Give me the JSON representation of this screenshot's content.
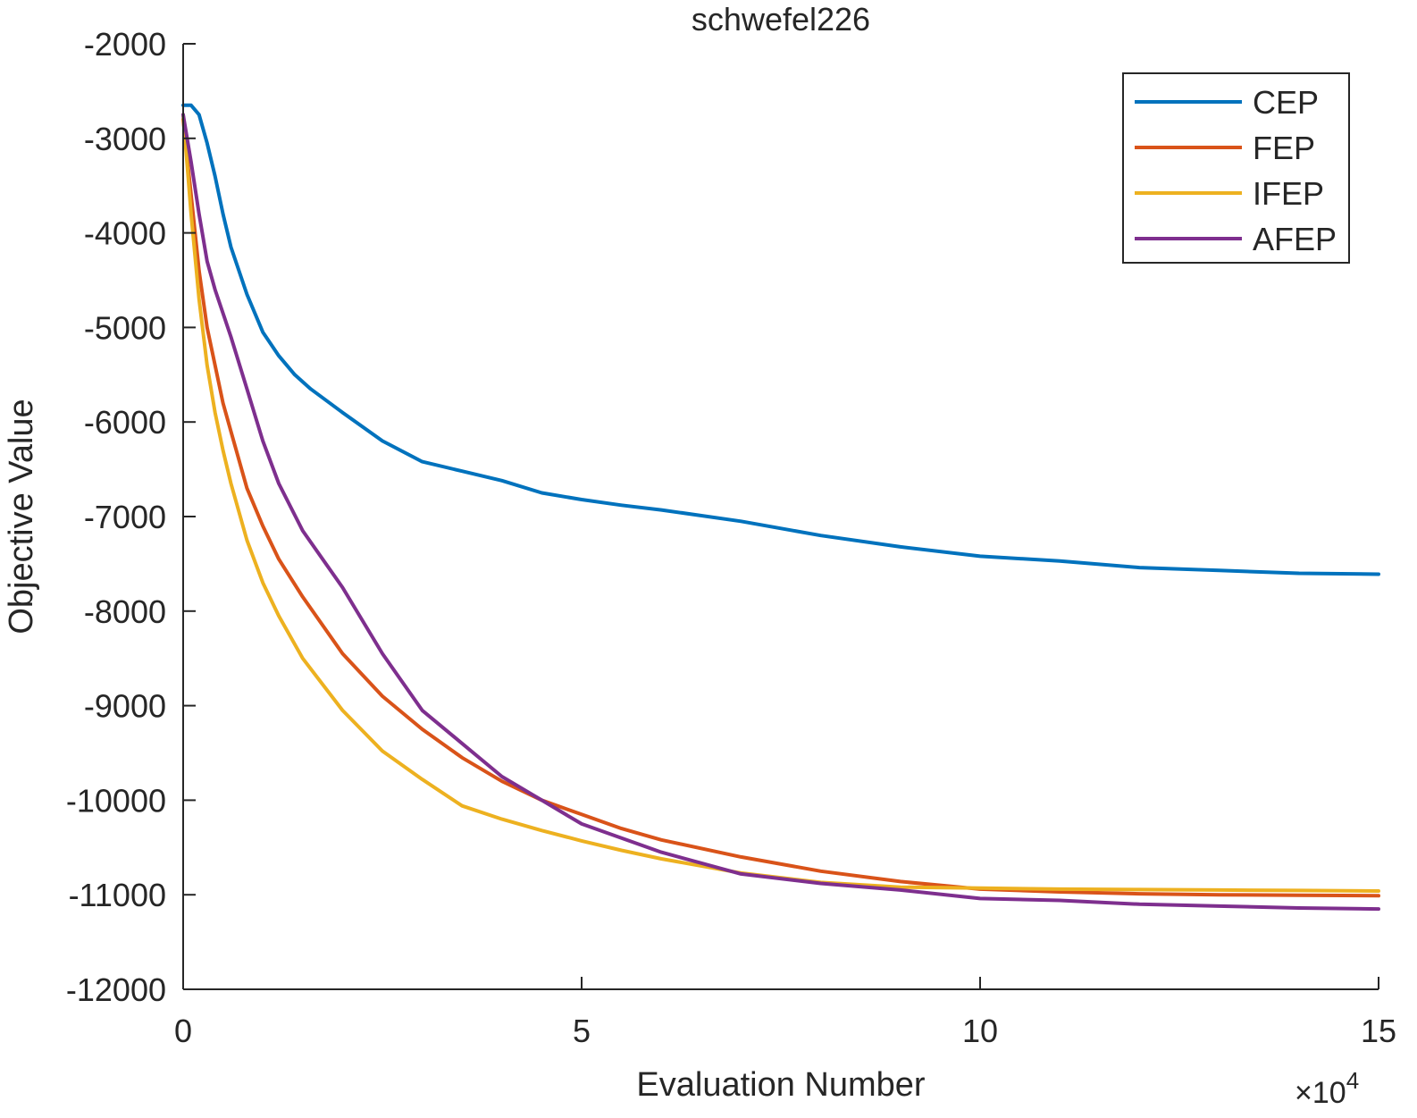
{
  "chart_data": {
    "type": "line",
    "title": "schwefel226",
    "xlabel": "Evaluation Number",
    "ylabel": "Objective Value",
    "x_exponent_label": "×10",
    "x_exponent_power": "4",
    "xlim": [
      0,
      15
    ],
    "ylim": [
      -12000,
      -2000
    ],
    "xticks": [
      0,
      5,
      10,
      15
    ],
    "yticks": [
      -12000,
      -11000,
      -10000,
      -9000,
      -8000,
      -7000,
      -6000,
      -5000,
      -4000,
      -3000,
      -2000
    ],
    "xtick_labels": [
      "0",
      "5",
      "10",
      "15"
    ],
    "ytick_labels": [
      "-12000",
      "-11000",
      "-10000",
      "-9000",
      "-8000",
      "-7000",
      "-6000",
      "-5000",
      "-4000",
      "-3000",
      "-2000"
    ],
    "grid": false,
    "legend_position": "top-right",
    "series": [
      {
        "name": "CEP",
        "color": "#0072BD",
        "points": [
          [
            0,
            -2650
          ],
          [
            0.1,
            -2650
          ],
          [
            0.2,
            -2750
          ],
          [
            0.3,
            -3050
          ],
          [
            0.4,
            -3400
          ],
          [
            0.5,
            -3800
          ],
          [
            0.6,
            -4150
          ],
          [
            0.8,
            -4650
          ],
          [
            1.0,
            -5050
          ],
          [
            1.2,
            -5300
          ],
          [
            1.4,
            -5500
          ],
          [
            1.6,
            -5650
          ],
          [
            2.0,
            -5900
          ],
          [
            2.5,
            -6200
          ],
          [
            3.0,
            -6420
          ],
          [
            3.5,
            -6520
          ],
          [
            4.0,
            -6620
          ],
          [
            4.5,
            -6750
          ],
          [
            5.0,
            -6820
          ],
          [
            5.5,
            -6880
          ],
          [
            6.0,
            -6930
          ],
          [
            7.0,
            -7050
          ],
          [
            8.0,
            -7200
          ],
          [
            9.0,
            -7320
          ],
          [
            10.0,
            -7420
          ],
          [
            11.0,
            -7470
          ],
          [
            12.0,
            -7540
          ],
          [
            13.0,
            -7570
          ],
          [
            14.0,
            -7600
          ],
          [
            15.0,
            -7610
          ]
        ]
      },
      {
        "name": "FEP",
        "color": "#D95319",
        "points": [
          [
            0,
            -2800
          ],
          [
            0.1,
            -3600
          ],
          [
            0.2,
            -4400
          ],
          [
            0.3,
            -5000
          ],
          [
            0.4,
            -5400
          ],
          [
            0.5,
            -5800
          ],
          [
            0.6,
            -6100
          ],
          [
            0.8,
            -6700
          ],
          [
            1.0,
            -7100
          ],
          [
            1.2,
            -7450
          ],
          [
            1.5,
            -7850
          ],
          [
            2.0,
            -8450
          ],
          [
            2.5,
            -8900
          ],
          [
            3.0,
            -9250
          ],
          [
            3.5,
            -9550
          ],
          [
            4.0,
            -9800
          ],
          [
            4.5,
            -10000
          ],
          [
            5.0,
            -10150
          ],
          [
            5.5,
            -10300
          ],
          [
            6.0,
            -10420
          ],
          [
            7.0,
            -10600
          ],
          [
            8.0,
            -10750
          ],
          [
            9.0,
            -10860
          ],
          [
            10.0,
            -10940
          ],
          [
            11.0,
            -10970
          ],
          [
            12.0,
            -10990
          ],
          [
            13.0,
            -11000
          ],
          [
            14.0,
            -11005
          ],
          [
            15.0,
            -11010
          ]
        ]
      },
      {
        "name": "IFEP",
        "color": "#EDB120",
        "points": [
          [
            0,
            -2750
          ],
          [
            0.1,
            -3800
          ],
          [
            0.2,
            -4700
          ],
          [
            0.3,
            -5400
          ],
          [
            0.4,
            -5900
          ],
          [
            0.5,
            -6300
          ],
          [
            0.6,
            -6650
          ],
          [
            0.8,
            -7250
          ],
          [
            1.0,
            -7700
          ],
          [
            1.2,
            -8050
          ],
          [
            1.5,
            -8500
          ],
          [
            2.0,
            -9050
          ],
          [
            2.5,
            -9480
          ],
          [
            3.0,
            -9780
          ],
          [
            3.5,
            -10060
          ],
          [
            4.0,
            -10200
          ],
          [
            4.5,
            -10320
          ],
          [
            5.0,
            -10430
          ],
          [
            5.5,
            -10530
          ],
          [
            6.0,
            -10620
          ],
          [
            7.0,
            -10770
          ],
          [
            8.0,
            -10870
          ],
          [
            9.0,
            -10920
          ],
          [
            10.0,
            -10930
          ],
          [
            11.0,
            -10940
          ],
          [
            12.0,
            -10945
          ],
          [
            13.0,
            -10950
          ],
          [
            14.0,
            -10955
          ],
          [
            15.0,
            -10960
          ]
        ]
      },
      {
        "name": "AFEP",
        "color": "#7E2F8E",
        "points": [
          [
            0,
            -2750
          ],
          [
            0.1,
            -3250
          ],
          [
            0.2,
            -3800
          ],
          [
            0.3,
            -4300
          ],
          [
            0.4,
            -4600
          ],
          [
            0.5,
            -4850
          ],
          [
            0.6,
            -5100
          ],
          [
            0.8,
            -5650
          ],
          [
            1.0,
            -6200
          ],
          [
            1.2,
            -6650
          ],
          [
            1.5,
            -7150
          ],
          [
            2.0,
            -7750
          ],
          [
            2.5,
            -8450
          ],
          [
            3.0,
            -9050
          ],
          [
            3.5,
            -9400
          ],
          [
            4.0,
            -9750
          ],
          [
            4.5,
            -10000
          ],
          [
            5.0,
            -10250
          ],
          [
            5.5,
            -10400
          ],
          [
            6.0,
            -10550
          ],
          [
            7.0,
            -10780
          ],
          [
            8.0,
            -10880
          ],
          [
            9.0,
            -10950
          ],
          [
            10.0,
            -11040
          ],
          [
            11.0,
            -11060
          ],
          [
            12.0,
            -11100
          ],
          [
            13.0,
            -11120
          ],
          [
            14.0,
            -11140
          ],
          [
            15.0,
            -11150
          ]
        ]
      }
    ]
  }
}
